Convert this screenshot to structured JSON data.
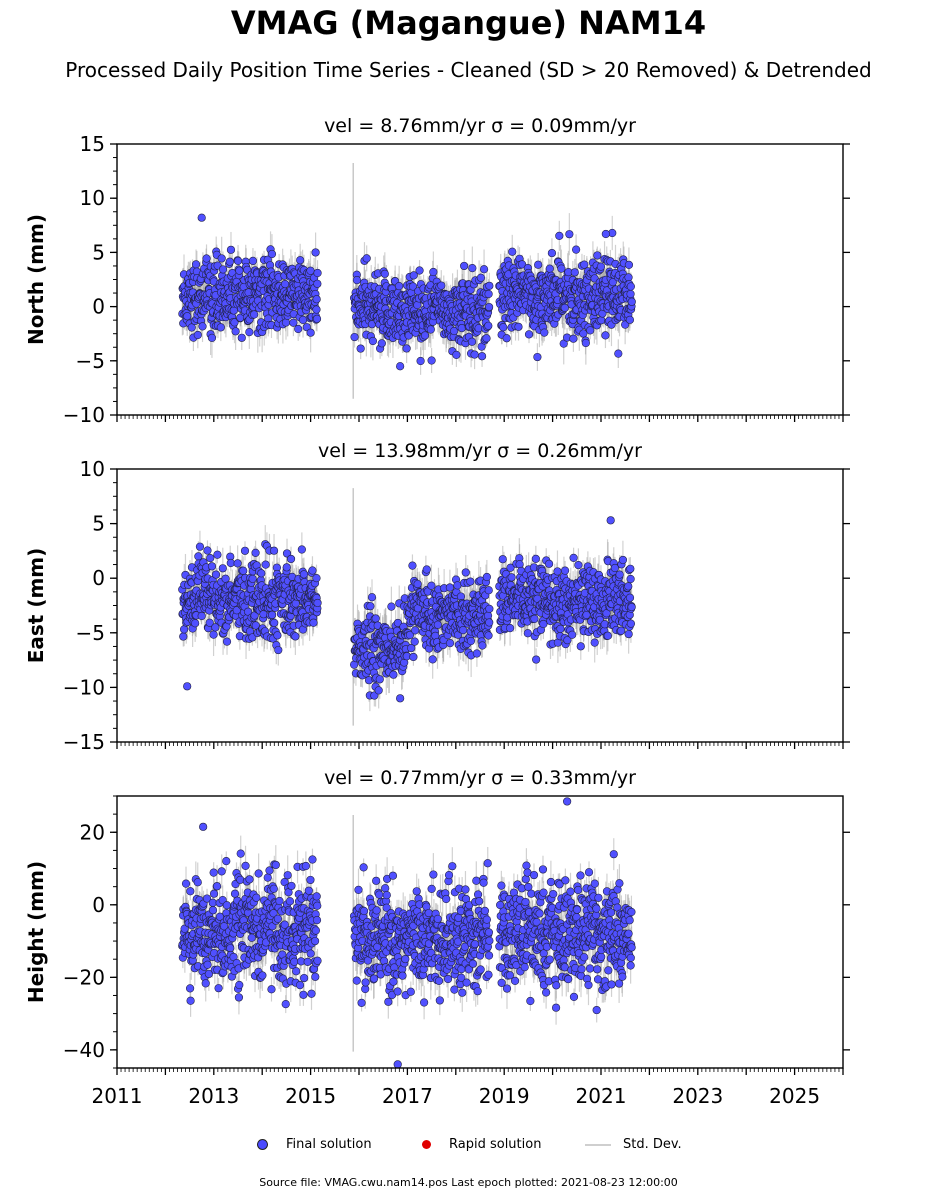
{
  "title": "VMAG (Magangue) NAM14",
  "subtitle": "Processed Daily Position Time Series - Cleaned (SD > 20 Removed) & Detrended",
  "legend": [
    {
      "label": "Final solution",
      "color": "#4a4aff"
    },
    {
      "label": "Rapid solution",
      "color": "#e00000"
    },
    {
      "label": "Std. Dev.",
      "color": "#cccccc"
    }
  ],
  "footer": "Source file: VMAG.cwu.nam14.pos  Last epoch plotted: 2021-08-23 12:00:00",
  "chart_data": [
    {
      "type": "scatter",
      "title": "vel = 8.76mm/yr   σ = 0.09mm/yr",
      "ylabel": "North (mm)",
      "xlim": [
        2011,
        2026
      ],
      "ylim": [
        -10,
        15
      ],
      "yticks": [
        -10,
        -5,
        0,
        5,
        10,
        15
      ],
      "series": [
        {
          "name": "Final solution",
          "segments": [
            {
              "start": 2012.35,
              "end": 2015.15,
              "mean": 1.0,
              "sd": 1.6,
              "outlier": [
                2012.75,
                8.2
              ]
            },
            {
              "start": 2015.9,
              "end": 2018.7,
              "mean": -0.3,
              "sd": 1.7,
              "outlier": [
                2016.85,
                -5.5
              ]
            },
            {
              "start": 2018.9,
              "end": 2021.64,
              "mean": 1.0,
              "sd": 1.7,
              "outlier": [
                2021.1,
                6.7
              ]
            }
          ]
        }
      ]
    },
    {
      "type": "scatter",
      "title": "vel = 13.98mm/yr   σ = 0.26mm/yr",
      "ylabel": "East (mm)",
      "xlim": [
        2011,
        2026
      ],
      "ylim": [
        -15,
        10
      ],
      "yticks": [
        -15,
        -10,
        -5,
        0,
        5,
        10
      ],
      "series": [
        {
          "name": "Final solution",
          "segments": [
            {
              "start": 2012.35,
              "end": 2015.15,
              "mean": -2.0,
              "sd": 1.8,
              "outlier": [
                2012.45,
                -9.9
              ]
            },
            {
              "start": 2015.9,
              "end": 2017.0,
              "mean": -6.5,
              "sd": 1.6,
              "outlier": [
                2016.85,
                -11.0
              ]
            },
            {
              "start": 2017.0,
              "end": 2018.7,
              "mean": -3.2,
              "sd": 1.5,
              "outlier": [
                2017.4,
                0.8
              ]
            },
            {
              "start": 2018.9,
              "end": 2021.64,
              "mean": -2.2,
              "sd": 1.7,
              "outlier": [
                2021.2,
                5.3
              ]
            }
          ]
        }
      ]
    },
    {
      "type": "scatter",
      "title": "vel = 0.77mm/yr   σ = 0.33mm/yr",
      "ylabel": "Height (mm)",
      "xlim": [
        2011,
        2026
      ],
      "ylim": [
        -45,
        30
      ],
      "yticks": [
        -40,
        -20,
        0,
        20
      ],
      "xticks": [
        "2011",
        "2013",
        "2015",
        "2017",
        "2019",
        "2021",
        "2023",
        "2025"
      ],
      "series": [
        {
          "name": "Final solution",
          "segments": [
            {
              "start": 2012.35,
              "end": 2015.15,
              "mean": -7.0,
              "sd": 7.0,
              "outlier": [
                2012.78,
                21.5
              ]
            },
            {
              "start": 2015.9,
              "end": 2018.7,
              "mean": -9.0,
              "sd": 7.0,
              "outlier": [
                2016.8,
                -44.0
              ]
            },
            {
              "start": 2018.9,
              "end": 2021.64,
              "mean": -8.0,
              "sd": 7.0,
              "outlier": [
                2020.3,
                28.5
              ]
            }
          ]
        }
      ]
    }
  ]
}
